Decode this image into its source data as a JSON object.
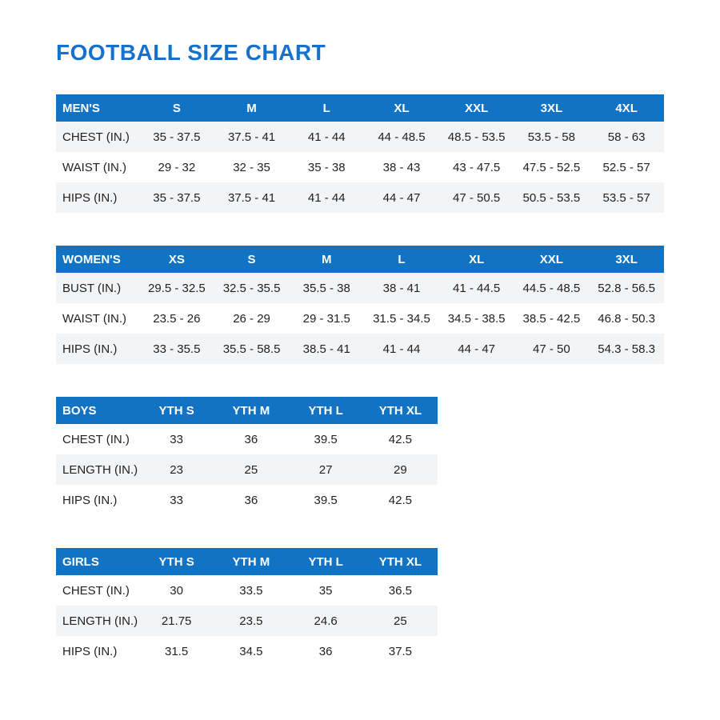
{
  "page": {
    "title": "FOOTBALL SIZE CHART"
  },
  "colors": {
    "title_blue": "#1472CE",
    "header_blue": "#1273C4",
    "header_text": "#FFFFFF",
    "body_text": "#222222",
    "row_shade": "#F3F4F6"
  },
  "tables": [
    {
      "id": "mens",
      "name": "MEN'S",
      "sizes": [
        "S",
        "M",
        "L",
        "XL",
        "XXL",
        "3XL",
        "4XL"
      ],
      "rows": [
        {
          "label": "CHEST (IN.)",
          "values": [
            "35 - 37.5",
            "37.5 - 41",
            "41 - 44",
            "44 - 48.5",
            "48.5 - 53.5",
            "53.5 - 58",
            "58 - 63"
          ]
        },
        {
          "label": "WAIST (IN.)",
          "values": [
            "29 - 32",
            "32 - 35",
            "35 - 38",
            "38 - 43",
            "43 - 47.5",
            "47.5 - 52.5",
            "52.5 - 57"
          ]
        },
        {
          "label": "HIPS (IN.)",
          "values": [
            "35 - 37.5",
            "37.5 - 41",
            "41 - 44",
            "44 - 47",
            "47 - 50.5",
            "50.5 - 53.5",
            "53.5 - 57"
          ]
        }
      ]
    },
    {
      "id": "womens",
      "name": "WOMEN'S",
      "sizes": [
        "XS",
        "S",
        "M",
        "L",
        "XL",
        "XXL",
        "3XL"
      ],
      "rows": [
        {
          "label": "BUST (IN.)",
          "values": [
            "29.5 - 32.5",
            "32.5 - 35.5",
            "35.5 - 38",
            "38 - 41",
            "41 - 44.5",
            "44.5 - 48.5",
            "52.8 - 56.5"
          ]
        },
        {
          "label": "WAIST (IN.)",
          "values": [
            "23.5 - 26",
            "26 - 29",
            "29 - 31.5",
            "31.5 - 34.5",
            "34.5 - 38.5",
            "38.5 - 42.5",
            "46.8 - 50.3"
          ]
        },
        {
          "label": "HIPS (IN.)",
          "values": [
            "33 - 35.5",
            "35.5 - 58.5",
            "38.5 - 41",
            "41 - 44",
            "44 - 47",
            "47 - 50",
            "54.3 - 58.3"
          ]
        }
      ]
    },
    {
      "id": "boys",
      "name": "BOYS",
      "sizes": [
        "YTH S",
        "YTH M",
        "YTH L",
        "YTH XL"
      ],
      "rows": [
        {
          "label": "CHEST (IN.)",
          "values": [
            "33",
            "36",
            "39.5",
            "42.5"
          ]
        },
        {
          "label": "LENGTH (IN.)",
          "values": [
            "23",
            "25",
            "27",
            "29"
          ]
        },
        {
          "label": "HIPS (IN.)",
          "values": [
            "33",
            "36",
            "39.5",
            "42.5"
          ]
        }
      ]
    },
    {
      "id": "girls",
      "name": "GIRLS",
      "sizes": [
        "YTH S",
        "YTH M",
        "YTH L",
        "YTH XL"
      ],
      "rows": [
        {
          "label": "CHEST (IN.)",
          "values": [
            "30",
            "33.5",
            "35",
            "36.5"
          ]
        },
        {
          "label": "LENGTH (IN.)",
          "values": [
            "21.75",
            "23.5",
            "24.6",
            "25"
          ]
        },
        {
          "label": "HIPS (IN.)",
          "values": [
            "31.5",
            "34.5",
            "36",
            "37.5"
          ]
        }
      ]
    }
  ]
}
